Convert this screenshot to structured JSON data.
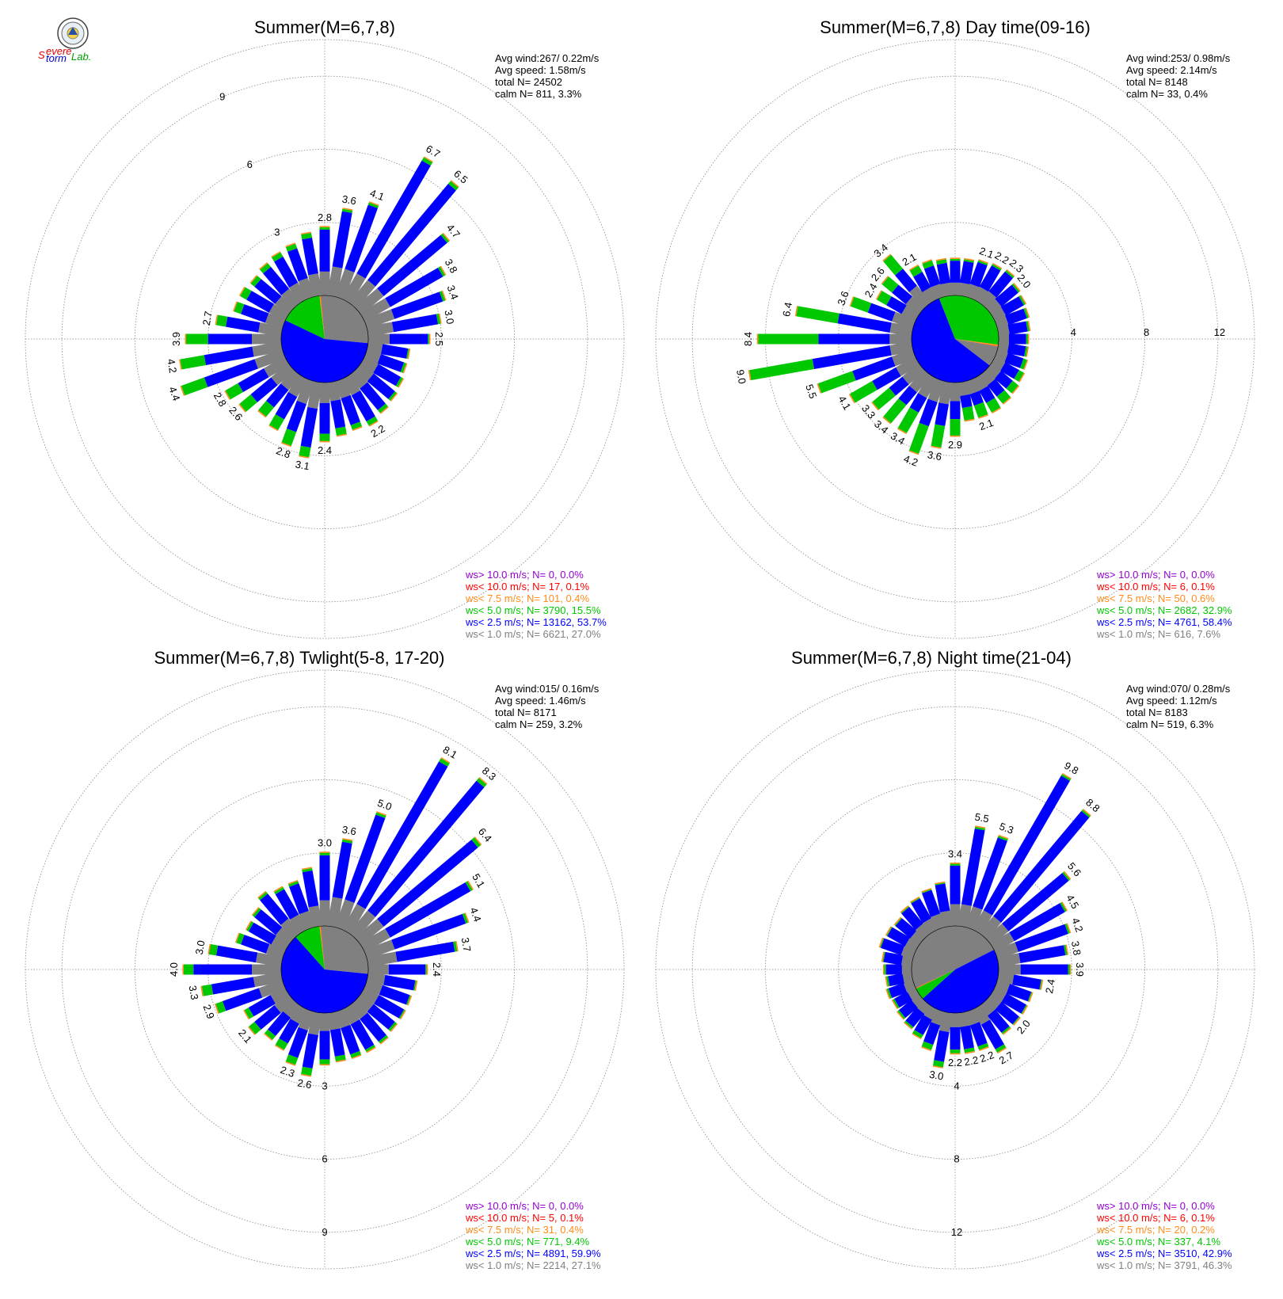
{
  "logo": {
    "line1": "Severe",
    "line2": "Storm",
    "line3": "Lab."
  },
  "legend_colors": {
    "gt10": "#9400d3",
    "lt10": "#ff0000",
    "lt75": "#ff8c1a",
    "lt50": "#00c800",
    "lt25": "#0000ff",
    "lt10calm": "#808080"
  },
  "chart_data": [
    {
      "type": "polar-bar",
      "title": "Summer(M=6,7,8)",
      "rings": [
        3,
        6,
        9
      ],
      "ring_labels": [
        "3",
        "6",
        "9"
      ],
      "rmax": 10.5,
      "info": [
        "Avg wind:267/ 0.22m/s",
        "Avg speed: 1.58m/s",
        "total N=      24502",
        "calm N=     811,   3.3%"
      ],
      "calm_pie": {
        "gray": 27.0,
        "blue": 53.7,
        "green": 15.5,
        "orange": 0.4,
        "red": 0.1,
        "purple": 0.0
      },
      "bars": [
        {
          "dir": 0,
          "total": 2.8,
          "g": 0.1,
          "label": "2.8"
        },
        {
          "dir": 10,
          "total": 3.6,
          "g": 0.1,
          "label": "3.6"
        },
        {
          "dir": 20,
          "total": 4.1,
          "g": 0.1,
          "label": "4.1"
        },
        {
          "dir": 30,
          "total": 6.7,
          "g": 0.15,
          "label": "6.7"
        },
        {
          "dir": 40,
          "total": 6.5,
          "g": 0.15,
          "label": "6.5"
        },
        {
          "dir": 50,
          "total": 4.7,
          "g": 0.1,
          "label": "4.7"
        },
        {
          "dir": 60,
          "total": 3.8,
          "g": 0.1,
          "label": "3.8"
        },
        {
          "dir": 70,
          "total": 3.4,
          "g": 0.1,
          "label": "3.4"
        },
        {
          "dir": 80,
          "total": 3.0,
          "g": 0.1,
          "label": "3.0"
        },
        {
          "dir": 90,
          "total": 2.5,
          "g": 0.05,
          "label": "2.5"
        },
        {
          "dir": 100,
          "total": 1.7,
          "g": 0.05,
          "label": ""
        },
        {
          "dir": 110,
          "total": 1.7,
          "g": 0.1,
          "label": ""
        },
        {
          "dir": 120,
          "total": 1.8,
          "g": 0.1,
          "label": ""
        },
        {
          "dir": 130,
          "total": 1.9,
          "g": 0.1,
          "label": ""
        },
        {
          "dir": 140,
          "total": 2.0,
          "g": 0.15,
          "label": ""
        },
        {
          "dir": 150,
          "total": 2.2,
          "g": 0.2,
          "label": "2.2"
        },
        {
          "dir": 160,
          "total": 2.1,
          "g": 0.2,
          "label": ""
        },
        {
          "dir": 170,
          "total": 2.2,
          "g": 0.3,
          "label": ""
        },
        {
          "dir": 180,
          "total": 2.4,
          "g": 0.3,
          "label": "2.4"
        },
        {
          "dir": 190,
          "total": 3.1,
          "g": 0.4,
          "label": "3.1"
        },
        {
          "dir": 200,
          "total": 2.8,
          "g": 0.6,
          "label": "2.8"
        },
        {
          "dir": 210,
          "total": 2.4,
          "g": 0.5,
          "label": ""
        },
        {
          "dir": 220,
          "total": 2.2,
          "g": 0.5,
          "label": ""
        },
        {
          "dir": 230,
          "total": 2.6,
          "g": 0.6,
          "label": "2.6"
        },
        {
          "dir": 240,
          "total": 2.8,
          "g": 0.6,
          "label": "2.8"
        },
        {
          "dir": 250,
          "total": 4.4,
          "g": 1.0,
          "label": "4.4"
        },
        {
          "dir": 260,
          "total": 4.2,
          "g": 1.0,
          "label": "4.2"
        },
        {
          "dir": 270,
          "total": 3.9,
          "g": 0.9,
          "label": "3.9"
        },
        {
          "dir": 280,
          "total": 2.7,
          "g": 0.4,
          "label": "2.7"
        },
        {
          "dir": 290,
          "total": 2.1,
          "g": 0.3,
          "label": ""
        },
        {
          "dir": 300,
          "total": 2.1,
          "g": 0.3,
          "label": ""
        },
        {
          "dir": 310,
          "total": 2.0,
          "g": 0.2,
          "label": ""
        },
        {
          "dir": 320,
          "total": 2.1,
          "g": 0.2,
          "label": ""
        },
        {
          "dir": 330,
          "total": 2.2,
          "g": 0.2,
          "label": ""
        },
        {
          "dir": 340,
          "total": 2.3,
          "g": 0.2,
          "label": ""
        },
        {
          "dir": 350,
          "total": 2.6,
          "g": 0.2,
          "label": ""
        }
      ],
      "legend": [
        "ws> 10.0 m/s; N=     0,  0.0%",
        "ws< 10.0 m/s; N=    17,  0.1%",
        "ws<  7.5 m/s; N=   101,  0.4%",
        "ws<  5.0 m/s; N=  3790, 15.5%",
        "ws<  2.5 m/s; N= 13162, 53.7%",
        "ws<  1.0 m/s; N=  6621, 27.0%"
      ]
    },
    {
      "type": "polar-bar",
      "title": "Summer(M=6,7,8) Day time(09-16)",
      "rings": [
        4,
        8,
        12
      ],
      "ring_labels": [
        "4",
        "8",
        "12"
      ],
      "rmax": 14,
      "info": [
        "Avg wind:253/ 0.98m/s",
        "Avg speed: 2.14m/s",
        "total N=       8148",
        "calm N=      33,   0.4%"
      ],
      "calm_pie": {
        "gray": 7.6,
        "blue": 58.4,
        "green": 32.9,
        "orange": 0.6,
        "red": 0.1,
        "purple": 0.0
      },
      "bars": [
        {
          "dir": 0,
          "total": 2.0,
          "g": 0.1,
          "label": ""
        },
        {
          "dir": 10,
          "total": 2.0,
          "g": 0.1,
          "label": ""
        },
        {
          "dir": 20,
          "total": 2.1,
          "g": 0.1,
          "label": "2.1"
        },
        {
          "dir": 30,
          "total": 2.2,
          "g": 0.1,
          "label": "2.2"
        },
        {
          "dir": 40,
          "total": 2.3,
          "g": 0.1,
          "label": "2.3"
        },
        {
          "dir": 50,
          "total": 2.0,
          "g": 0.1,
          "label": "2.0"
        },
        {
          "dir": 60,
          "total": 1.9,
          "g": 0.1,
          "label": ""
        },
        {
          "dir": 70,
          "total": 1.8,
          "g": 0.1,
          "label": ""
        },
        {
          "dir": 80,
          "total": 1.7,
          "g": 0.1,
          "label": ""
        },
        {
          "dir": 90,
          "total": 1.6,
          "g": 0.1,
          "label": ""
        },
        {
          "dir": 100,
          "total": 1.6,
          "g": 0.1,
          "label": ""
        },
        {
          "dir": 110,
          "total": 1.7,
          "g": 0.2,
          "label": ""
        },
        {
          "dir": 120,
          "total": 1.8,
          "g": 0.3,
          "label": ""
        },
        {
          "dir": 130,
          "total": 1.9,
          "g": 0.4,
          "label": ""
        },
        {
          "dir": 140,
          "total": 2.0,
          "g": 0.5,
          "label": ""
        },
        {
          "dir": 150,
          "total": 2.1,
          "g": 0.6,
          "label": ""
        },
        {
          "dir": 160,
          "total": 2.1,
          "g": 0.7,
          "label": "2.1"
        },
        {
          "dir": 170,
          "total": 2.1,
          "g": 0.7,
          "label": ""
        },
        {
          "dir": 180,
          "total": 2.9,
          "g": 0.9,
          "label": "2.9"
        },
        {
          "dir": 190,
          "total": 3.6,
          "g": 1.2,
          "label": "3.6"
        },
        {
          "dir": 200,
          "total": 4.2,
          "g": 1.6,
          "label": "4.2"
        },
        {
          "dir": 210,
          "total": 3.4,
          "g": 1.3,
          "label": "3.4"
        },
        {
          "dir": 220,
          "total": 3.4,
          "g": 1.3,
          "label": "3.4"
        },
        {
          "dir": 230,
          "total": 3.3,
          "g": 1.2,
          "label": "3.3"
        },
        {
          "dir": 240,
          "total": 4.1,
          "g": 1.4,
          "label": "4.1"
        },
        {
          "dir": 250,
          "total": 5.5,
          "g": 2.0,
          "label": "5.5"
        },
        {
          "dir": 260,
          "total": 9.0,
          "g": 3.5,
          "label": "9.0"
        },
        {
          "dir": 270,
          "total": 8.4,
          "g": 3.3,
          "label": "8.4"
        },
        {
          "dir": 280,
          "total": 6.4,
          "g": 2.3,
          "label": "6.4"
        },
        {
          "dir": 290,
          "total": 3.6,
          "g": 1.0,
          "label": "3.6"
        },
        {
          "dir": 300,
          "total": 2.4,
          "g": 0.6,
          "label": "2.4"
        },
        {
          "dir": 310,
          "total": 2.6,
          "g": 0.7,
          "label": "2.6"
        },
        {
          "dir": 320,
          "total": 3.4,
          "g": 1.0,
          "label": "3.4"
        },
        {
          "dir": 330,
          "total": 2.1,
          "g": 0.4,
          "label": "2.1"
        },
        {
          "dir": 340,
          "total": 2.1,
          "g": 0.3,
          "label": ""
        },
        {
          "dir": 350,
          "total": 2.0,
          "g": 0.2,
          "label": ""
        }
      ],
      "legend": [
        "ws> 10.0 m/s; N=     0,  0.0%",
        "ws< 10.0 m/s; N=     6,  0.1%",
        "ws<  7.5 m/s; N=    50,  0.6%",
        "ws<  5.0 m/s; N=  2682, 32.9%",
        "ws<  2.5 m/s; N=  4761, 58.4%",
        "ws<  1.0 m/s; N=   616,  7.6%"
      ]
    },
    {
      "type": "polar-bar",
      "title": "Summer(M=6,7,8) Twlight(5-8, 17-20)",
      "rings": [
        3,
        6,
        9
      ],
      "ring_labels": [
        "3",
        "6",
        "9"
      ],
      "rmax": 10.5,
      "info": [
        "Avg wind:015/ 0.16m/s",
        "Avg speed: 1.46m/s",
        "total N=       8171",
        "calm N=     259,   3.2%"
      ],
      "calm_pie": {
        "gray": 27.1,
        "blue": 59.9,
        "green": 9.4,
        "orange": 0.4,
        "red": 0.1,
        "purple": 0.0
      },
      "bars": [
        {
          "dir": 0,
          "total": 3.0,
          "g": 0.1,
          "label": "3.0"
        },
        {
          "dir": 10,
          "total": 3.6,
          "g": 0.1,
          "label": "3.6"
        },
        {
          "dir": 20,
          "total": 5.0,
          "g": 0.1,
          "label": "5.0"
        },
        {
          "dir": 30,
          "total": 8.1,
          "g": 0.15,
          "label": "8.1"
        },
        {
          "dir": 40,
          "total": 8.3,
          "g": 0.15,
          "label": "8.3"
        },
        {
          "dir": 50,
          "total": 6.4,
          "g": 0.15,
          "label": "6.4"
        },
        {
          "dir": 60,
          "total": 5.1,
          "g": 0.1,
          "label": "5.1"
        },
        {
          "dir": 70,
          "total": 4.4,
          "g": 0.1,
          "label": "4.4"
        },
        {
          "dir": 80,
          "total": 3.7,
          "g": 0.1,
          "label": "3.7"
        },
        {
          "dir": 90,
          "total": 2.4,
          "g": 0.05,
          "label": "2.4"
        },
        {
          "dir": 100,
          "total": 2.0,
          "g": 0.05,
          "label": ""
        },
        {
          "dir": 110,
          "total": 1.9,
          "g": 0.05,
          "label": ""
        },
        {
          "dir": 120,
          "total": 1.9,
          "g": 0.05,
          "label": ""
        },
        {
          "dir": 130,
          "total": 1.9,
          "g": 0.1,
          "label": ""
        },
        {
          "dir": 140,
          "total": 2.0,
          "g": 0.1,
          "label": ""
        },
        {
          "dir": 150,
          "total": 2.0,
          "g": 0.1,
          "label": ""
        },
        {
          "dir": 160,
          "total": 2.0,
          "g": 0.15,
          "label": ""
        },
        {
          "dir": 170,
          "total": 2.0,
          "g": 0.2,
          "label": ""
        },
        {
          "dir": 180,
          "total": 2.1,
          "g": 0.2,
          "label": ""
        },
        {
          "dir": 190,
          "total": 2.6,
          "g": 0.3,
          "label": "2.6"
        },
        {
          "dir": 200,
          "total": 2.3,
          "g": 0.3,
          "label": "2.3"
        },
        {
          "dir": 210,
          "total": 1.9,
          "g": 0.3,
          "label": ""
        },
        {
          "dir": 220,
          "total": 1.8,
          "g": 0.2,
          "label": ""
        },
        {
          "dir": 230,
          "total": 2.1,
          "g": 0.3,
          "label": "2.1"
        },
        {
          "dir": 240,
          "total": 1.9,
          "g": 0.2,
          "label": ""
        },
        {
          "dir": 250,
          "total": 2.9,
          "g": 0.3,
          "label": "2.9"
        },
        {
          "dir": 260,
          "total": 3.3,
          "g": 0.4,
          "label": "3.3"
        },
        {
          "dir": 270,
          "total": 4.0,
          "g": 0.4,
          "label": "4.0"
        },
        {
          "dir": 280,
          "total": 3.0,
          "g": 0.3,
          "label": "3.0"
        },
        {
          "dir": 290,
          "total": 2.0,
          "g": 0.2,
          "label": ""
        },
        {
          "dir": 300,
          "total": 1.8,
          "g": 0.1,
          "label": ""
        },
        {
          "dir": 310,
          "total": 1.9,
          "g": 0.1,
          "label": ""
        },
        {
          "dir": 320,
          "total": 2.2,
          "g": 0.1,
          "label": ""
        },
        {
          "dir": 330,
          "total": 2.0,
          "g": 0.1,
          "label": ""
        },
        {
          "dir": 340,
          "total": 2.0,
          "g": 0.1,
          "label": ""
        },
        {
          "dir": 350,
          "total": 2.4,
          "g": 0.1,
          "label": ""
        }
      ],
      "legend": [
        "ws> 10.0 m/s; N=     0,  0.0%",
        "ws< 10.0 m/s; N=     5,  0.1%",
        "ws<  7.5 m/s; N=    31,  0.4%",
        "ws<  5.0 m/s; N=   771,  9.4%",
        "ws<  2.5 m/s; N=  4891, 59.9%",
        "ws<  1.0 m/s; N=  2214, 27.1%"
      ]
    },
    {
      "type": "polar-bar",
      "title": "Summer(M=6,7,8) Night time(21-04)",
      "rings": [
        4,
        8,
        12
      ],
      "ring_labels": [
        "4",
        "8",
        "12"
      ],
      "rmax": 14,
      "info": [
        "Avg wind:070/ 0.28m/s",
        "Avg speed: 1.12m/s",
        "total N=       8183",
        "calm N=     519,   6.3%"
      ],
      "calm_pie": {
        "gray": 46.3,
        "blue": 42.9,
        "green": 4.1,
        "orange": 0.2,
        "red": 0.1,
        "purple": 0.0
      },
      "bars": [
        {
          "dir": 0,
          "total": 3.4,
          "g": 0.1,
          "label": "3.4"
        },
        {
          "dir": 10,
          "total": 5.5,
          "g": 0.1,
          "label": "5.5"
        },
        {
          "dir": 20,
          "total": 5.3,
          "g": 0.1,
          "label": "5.3"
        },
        {
          "dir": 30,
          "total": 9.8,
          "g": 0.1,
          "label": "9.8"
        },
        {
          "dir": 40,
          "total": 8.8,
          "g": 0.1,
          "label": "8.8"
        },
        {
          "dir": 50,
          "total": 5.6,
          "g": 0.1,
          "label": "5.6"
        },
        {
          "dir": 60,
          "total": 4.5,
          "g": 0.1,
          "label": "4.5"
        },
        {
          "dir": 70,
          "total": 4.2,
          "g": 0.1,
          "label": "4.2"
        },
        {
          "dir": 80,
          "total": 3.8,
          "g": 0.1,
          "label": "3.8"
        },
        {
          "dir": 90,
          "total": 3.9,
          "g": 0.1,
          "label": "3.9"
        },
        {
          "dir": 100,
          "total": 2.4,
          "g": 0.05,
          "label": "2.4"
        },
        {
          "dir": 110,
          "total": 2.0,
          "g": 0.05,
          "label": ""
        },
        {
          "dir": 120,
          "total": 2.0,
          "g": 0.05,
          "label": ""
        },
        {
          "dir": 130,
          "total": 2.0,
          "g": 0.05,
          "label": "2.0"
        },
        {
          "dir": 140,
          "total": 2.0,
          "g": 0.1,
          "label": ""
        },
        {
          "dir": 150,
          "total": 2.7,
          "g": 0.2,
          "label": "2.7"
        },
        {
          "dir": 160,
          "total": 2.2,
          "g": 0.2,
          "label": "2.2"
        },
        {
          "dir": 170,
          "total": 2.2,
          "g": 0.2,
          "label": "2.2"
        },
        {
          "dir": 180,
          "total": 2.2,
          "g": 0.2,
          "label": "2.2"
        },
        {
          "dir": 190,
          "total": 3.0,
          "g": 0.3,
          "label": "3.0"
        },
        {
          "dir": 200,
          "total": 2.2,
          "g": 0.3,
          "label": ""
        },
        {
          "dir": 210,
          "total": 1.8,
          "g": 0.2,
          "label": ""
        },
        {
          "dir": 220,
          "total": 1.6,
          "g": 0.1,
          "label": ""
        },
        {
          "dir": 230,
          "total": 1.5,
          "g": 0.1,
          "label": ""
        },
        {
          "dir": 240,
          "total": 1.4,
          "g": 0.1,
          "label": ""
        },
        {
          "dir": 250,
          "total": 1.5,
          "g": 0.1,
          "label": ""
        },
        {
          "dir": 260,
          "total": 1.4,
          "g": 0.1,
          "label": ""
        },
        {
          "dir": 270,
          "total": 1.5,
          "g": 0.1,
          "label": ""
        },
        {
          "dir": 280,
          "total": 1.6,
          "g": 0.05,
          "label": ""
        },
        {
          "dir": 290,
          "total": 1.9,
          "g": 0.05,
          "label": ""
        },
        {
          "dir": 300,
          "total": 1.8,
          "g": 0.05,
          "label": ""
        },
        {
          "dir": 310,
          "total": 1.7,
          "g": 0.05,
          "label": ""
        },
        {
          "dir": 320,
          "total": 1.9,
          "g": 0.05,
          "label": ""
        },
        {
          "dir": 330,
          "total": 2.0,
          "g": 0.05,
          "label": ""
        },
        {
          "dir": 340,
          "total": 2.2,
          "g": 0.05,
          "label": ""
        },
        {
          "dir": 350,
          "total": 2.4,
          "g": 0.05,
          "label": ""
        }
      ],
      "legend": [
        "ws> 10.0 m/s; N=     0,  0.0%",
        "ws< 10.0 m/s; N=     6,  0.1%",
        "ws<  7.5 m/s; N=    20,  0.2%",
        "ws<  5.0 m/s; N=   337,  4.1%",
        "ws<  2.5 m/s; N=  3510, 42.9%",
        "ws<  1.0 m/s; N=  3791, 46.3%"
      ]
    }
  ]
}
